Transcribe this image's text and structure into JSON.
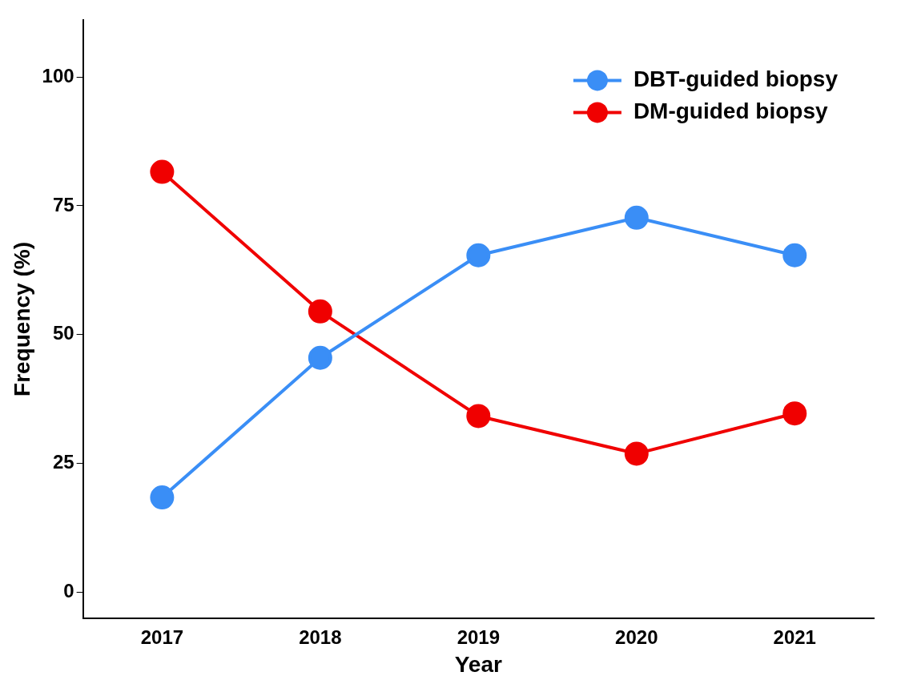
{
  "chart_data": {
    "type": "line",
    "xlabel": "Year",
    "ylabel": "Frequency (%)",
    "categories": [
      "2017",
      "2018",
      "2019",
      "2020",
      "2021"
    ],
    "series": [
      {
        "name": "DBT-guided biopsy",
        "color": "#3a8ef6",
        "values": [
          18.4,
          45.5,
          65.4,
          72.7,
          65.4
        ]
      },
      {
        "name": "DM-guided biopsy",
        "color": "#f00000",
        "values": [
          81.6,
          54.5,
          34.2,
          26.9,
          34.7
        ]
      }
    ],
    "ylim": [
      -5,
      111
    ],
    "yticks": [
      0,
      25,
      50,
      75,
      100
    ],
    "grid": false,
    "legend": "top right",
    "marker": "circle",
    "line_style": "solid"
  }
}
